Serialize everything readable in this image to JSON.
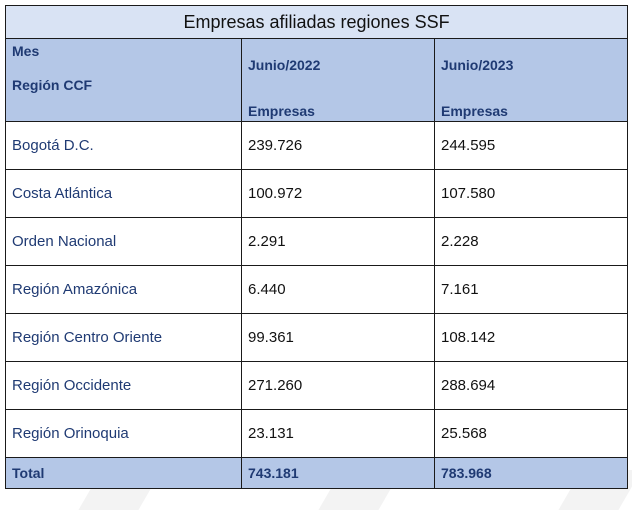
{
  "table": {
    "title": "Empresas afiliadas regiones SSF",
    "header": {
      "mes_label": "Mes",
      "region_label": "Región CCF",
      "periods": [
        "Junio/2022",
        "Junio/2023"
      ],
      "metric": "Empresas"
    },
    "rows": [
      {
        "region": "Bogotá D.C.",
        "v2022": "239.726",
        "v2023": "244.595"
      },
      {
        "region": "Costa Atlántica",
        "v2022": "100.972",
        "v2023": "107.580"
      },
      {
        "region": "Orden Nacional",
        "v2022": "2.291",
        "v2023": "2.228"
      },
      {
        "region": "Región Amazónica",
        "v2022": "6.440",
        "v2023": "7.161"
      },
      {
        "region": "Región Centro Oriente",
        "v2022": "99.361",
        "v2023": "108.142"
      },
      {
        "region": "Región Occidente",
        "v2022": "271.260",
        "v2023": "288.694"
      },
      {
        "region": "Región Orinoquia",
        "v2022": "23.131",
        "v2023": "25.568"
      }
    ],
    "total": {
      "label": "Total",
      "v2022": "743.181",
      "v2023": "783.968"
    }
  }
}
